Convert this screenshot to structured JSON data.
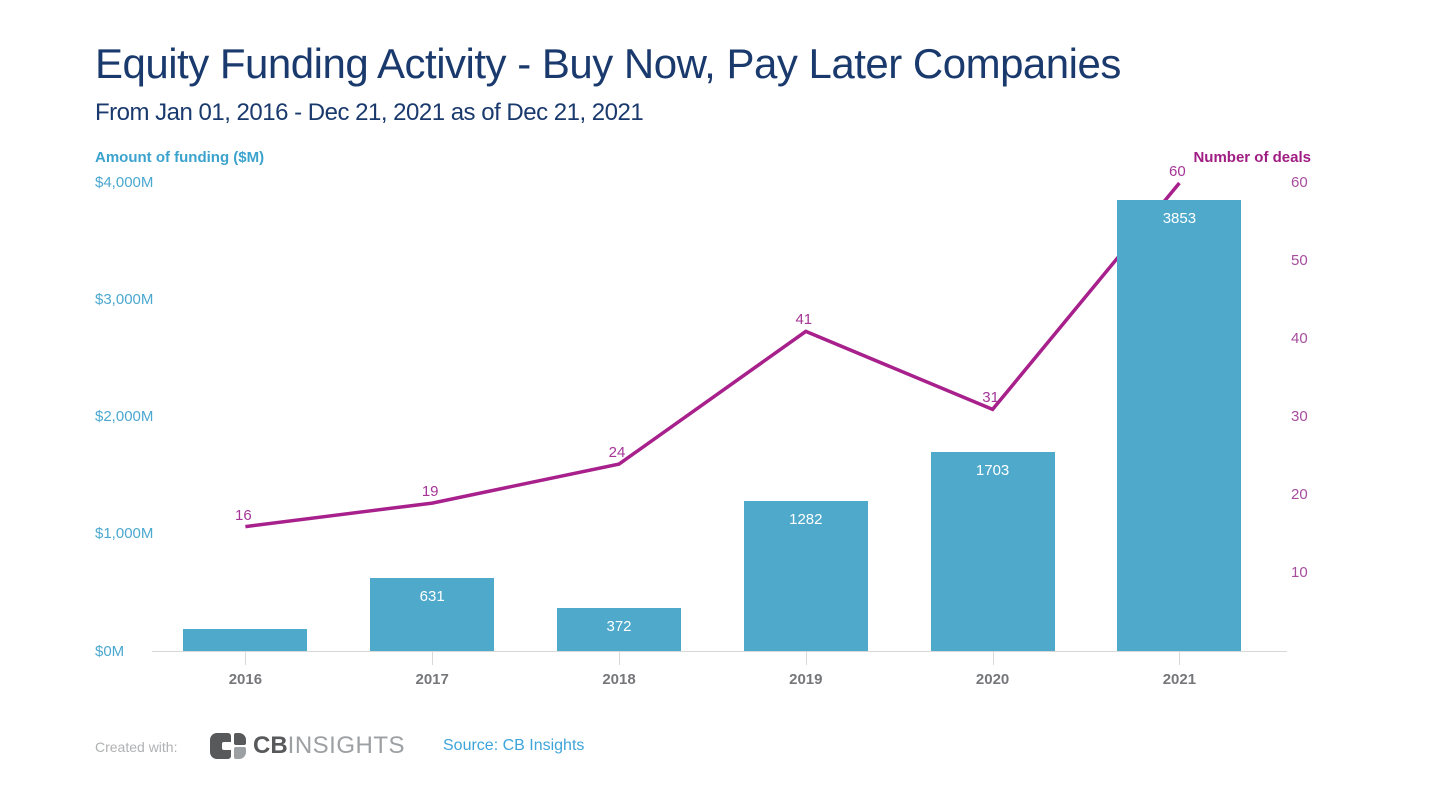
{
  "header": {
    "title": "Equity Funding Activity - Buy Now, Pay Later Companies",
    "subtitle": "From Jan 01, 2016 - Dec 21, 2021 as of Dec 21, 2021"
  },
  "chart_data": {
    "type": "bar",
    "combo": "bar series on left axis + line series on right axis",
    "categories": [
      "2016",
      "2017",
      "2018",
      "2019",
      "2020",
      "2021"
    ],
    "series": [
      {
        "name": "Amount of funding ($M)",
        "type": "bar",
        "axis": "left",
        "values": [
          190,
          631,
          372,
          1282,
          1703,
          3853
        ],
        "value_labels": [
          "",
          "631",
          "372",
          "1282",
          "1703",
          "3853"
        ]
      },
      {
        "name": "Number of deals",
        "type": "line",
        "axis": "right",
        "values": [
          16,
          19,
          24,
          41,
          31,
          60
        ],
        "value_labels": [
          "16",
          "19",
          "24",
          "41",
          "31",
          "60"
        ]
      }
    ],
    "title": "Equity Funding Activity - Buy Now, Pay Later Companies",
    "subtitle": "From Jan 01, 2016 - Dec 21, 2021 as of Dec 21, 2021",
    "xlabel": "",
    "left_axis": {
      "label": "Amount of funding ($M)",
      "tick_labels": [
        "$4,000M",
        "$3,000M",
        "$2,000M",
        "$1,000M",
        "$0M"
      ],
      "tick_values": [
        4000,
        3000,
        2000,
        1000,
        0
      ],
      "range": [
        0,
        4000
      ]
    },
    "right_axis": {
      "label": "Number of deals",
      "tick_labels": [
        "60",
        "50",
        "40",
        "30",
        "20",
        "10"
      ],
      "tick_values": [
        60,
        50,
        40,
        30,
        20,
        10
      ],
      "range": [
        0,
        60
      ]
    },
    "grid": false,
    "legend_position": "none"
  },
  "footer": {
    "created_with_label": "Created with:",
    "logo": {
      "icon": "cb-insights-logo-icon",
      "brand_bold": "CB",
      "brand_light": "INSIGHTS"
    },
    "source_text": "Source: CB Insights"
  },
  "colors": {
    "background": "#ffffff",
    "title": "#1a3a6d",
    "left_axis_title": "#3ba3cd",
    "left_tick": "#4ba8d0",
    "bar": "#4ea9cb",
    "bar_label": "#ffffff",
    "line": "#a7208c",
    "line_label": "#a53596",
    "right_axis_title": "#a01d83",
    "right_tick": "#a64d9d",
    "x_tick_label": "#76777a",
    "axis_line": "#d8d8d8",
    "footer_text": "#b0b1b3",
    "logo_dark": "#58595b",
    "logo_light": "#9da0a3",
    "source_link": "#3ea4d9"
  }
}
